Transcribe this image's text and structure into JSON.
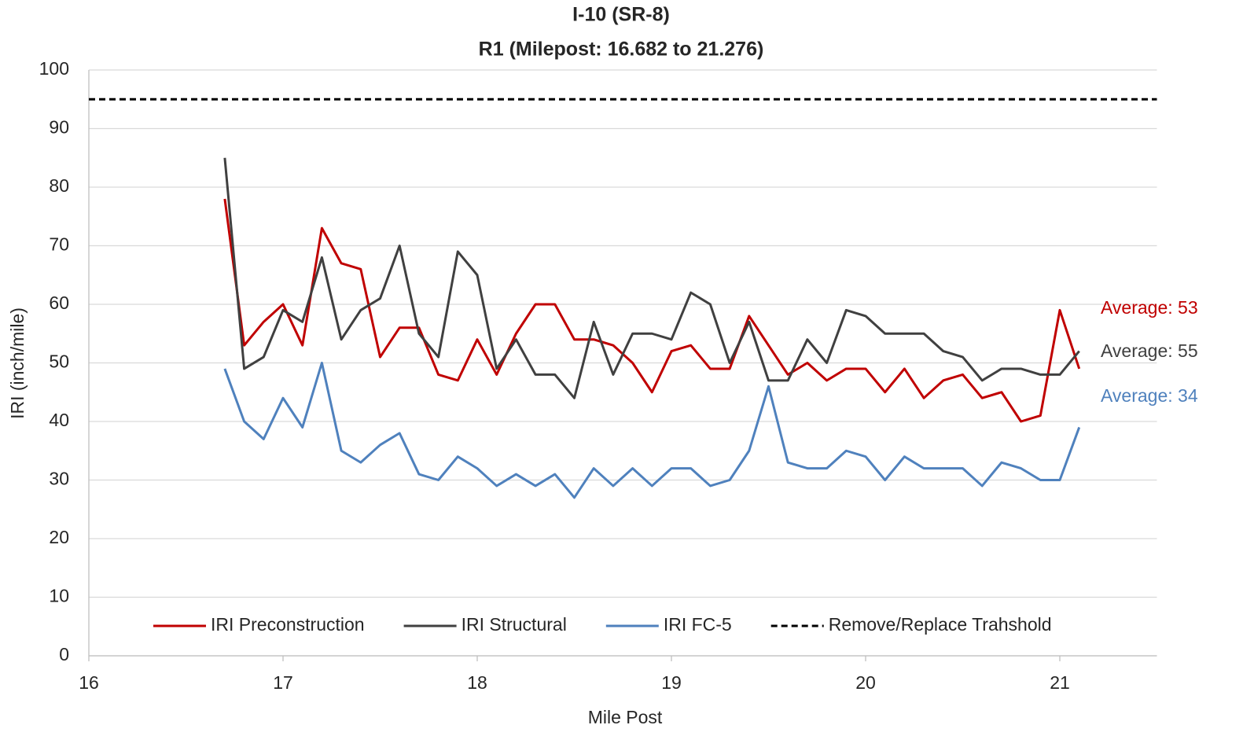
{
  "chart_data": {
    "type": "line",
    "title": "I-10 (SR-8)",
    "subtitle": "R1 (Milepost: 16.682 to 21.276)",
    "x_label": "Mile Post",
    "y_label": "IRI (inch/mile)",
    "x": [
      16.7,
      16.8,
      16.9,
      17.0,
      17.1,
      17.2,
      17.3,
      17.4,
      17.5,
      17.6,
      17.7,
      17.8,
      17.9,
      18.0,
      18.1,
      18.2,
      18.3,
      18.4,
      18.5,
      18.6,
      18.7,
      18.8,
      18.9,
      19.0,
      19.1,
      19.2,
      19.3,
      19.4,
      19.5,
      19.6,
      19.7,
      19.8,
      19.9,
      20.0,
      20.1,
      20.2,
      20.3,
      20.4,
      20.5,
      20.6,
      20.7,
      20.8,
      20.9,
      21.0,
      21.1
    ],
    "series": [
      {
        "name": "IRI Preconstruction",
        "color": "#c00000",
        "values": [
          78,
          53,
          57,
          60,
          53,
          73,
          67,
          66,
          51,
          56,
          56,
          48,
          47,
          54,
          48,
          55,
          60,
          60,
          54,
          54,
          53,
          50,
          45,
          52,
          53,
          49,
          49,
          58,
          53,
          48,
          50,
          47,
          49,
          49,
          45,
          49,
          44,
          47,
          48,
          44,
          45,
          40,
          41,
          59,
          49
        ]
      },
      {
        "name": "IRI Structural",
        "color": "#404040",
        "values": [
          85,
          49,
          51,
          59,
          57,
          68,
          54,
          59,
          61,
          70,
          55,
          51,
          69,
          65,
          49,
          54,
          48,
          48,
          44,
          57,
          48,
          55,
          55,
          54,
          62,
          60,
          50,
          57,
          47,
          47,
          54,
          50,
          59,
          58,
          55,
          55,
          55,
          52,
          51,
          47,
          49,
          49,
          48,
          48,
          52
        ]
      },
      {
        "name": "IRI FC-5",
        "color": "#4f81bd",
        "values": [
          49,
          40,
          37,
          44,
          39,
          50,
          35,
          33,
          36,
          38,
          31,
          30,
          34,
          32,
          29,
          31,
          29,
          31,
          27,
          32,
          29,
          32,
          29,
          32,
          32,
          29,
          30,
          35,
          46,
          33,
          32,
          32,
          35,
          34,
          30,
          34,
          32,
          32,
          32,
          29,
          33,
          32,
          30,
          30,
          39
        ]
      }
    ],
    "threshold": {
      "name": "Remove/Replace Trahshold",
      "value": 95,
      "color": "#000000",
      "dash": true
    },
    "annotations": [
      {
        "text": "Average: 53",
        "color": "#c00000"
      },
      {
        "text": "Average: 55",
        "color": "#404040"
      },
      {
        "text": "Average: 34",
        "color": "#4f81bd"
      }
    ],
    "xlim": [
      16,
      21.5
    ],
    "ylim": [
      0,
      100
    ],
    "xticks": [
      16,
      17,
      18,
      19,
      20,
      21
    ],
    "yticks": [
      0,
      10,
      20,
      30,
      40,
      50,
      60,
      70,
      80,
      90,
      100
    ],
    "grid": true,
    "legend": "bottom"
  }
}
